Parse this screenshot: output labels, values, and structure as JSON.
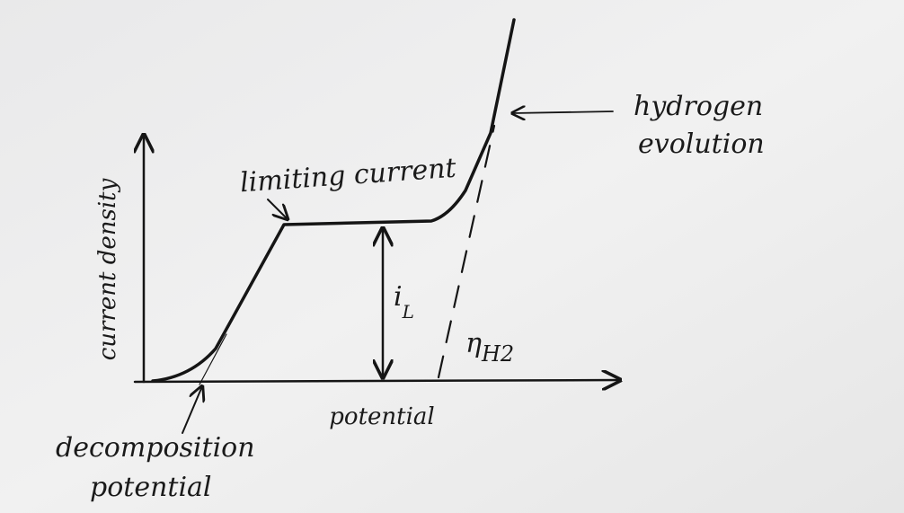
{
  "axes": {
    "y_label": "current density",
    "x_label": "potential"
  },
  "annotations": {
    "limiting_current": "limiting current",
    "hydrogen_evolution": [
      "hydrogen",
      "evolution"
    ],
    "decomposition_potential": [
      "decomposition",
      "potential"
    ],
    "limiting_current_symbol": {
      "main": "i",
      "sub": "L"
    },
    "overpotential_symbol": {
      "main": "η",
      "sub": "H2"
    }
  }
}
